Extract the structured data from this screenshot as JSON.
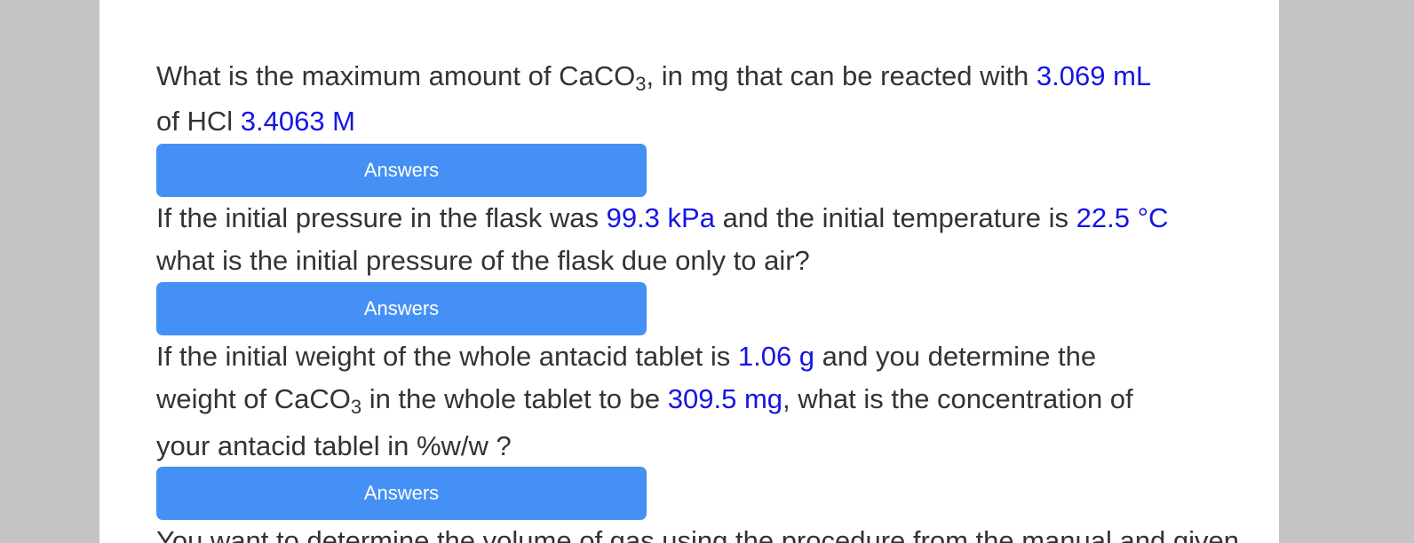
{
  "questions": [
    {
      "text_1": "What is the maximum amount of CaCO",
      "sub_1": "3",
      "text_2": ", in mg that can be reacted with ",
      "value_1": "3.069 mL",
      "text_3": "of HCl ",
      "value_2": "3.4063 M"
    },
    {
      "text_1": "If the initial pressure in the flask was ",
      "value_1": "99.3 kPa",
      "text_2": " and the initial temperature is ",
      "value_2": "22.5 °C",
      "text_3": "what is the initial pressure of the flask due only to air?"
    },
    {
      "text_1": "If the initial weight of the whole antacid tablet is ",
      "value_1": "1.06 g",
      "text_2": " and you determine the",
      "text_3": "weight of CaCO",
      "sub_1": "3",
      "text_4": " in the whole tablet to be ",
      "value_2": "309.5 mg",
      "text_5": ", what is the concentration of",
      "text_6": "your antacid tablel in %w/w ?"
    },
    {
      "text_1": "You want  to determine the volume of gas using the procedure from the manual and given"
    }
  ],
  "buttons": {
    "answers_label": "Answers"
  },
  "colors": {
    "highlight": "#1515e6",
    "button": "#4590f5",
    "text": "#333333",
    "backdrop": "#c4c4c4"
  }
}
